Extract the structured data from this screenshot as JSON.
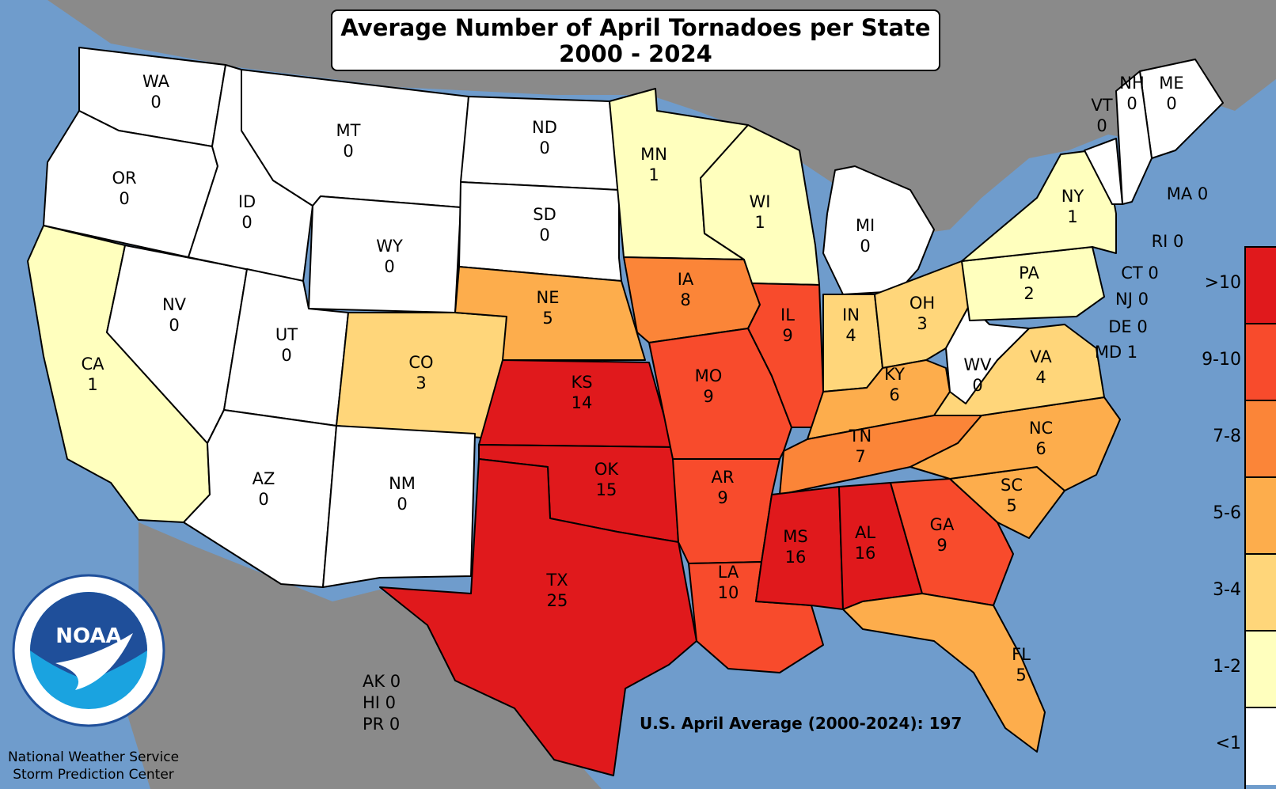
{
  "title": {
    "line1": "Average Number of April Tornadoes per State",
    "line2": "2000 - 2024"
  },
  "colors": {
    "water": "#6f9ccc",
    "land_outside": "#8a8a8a",
    "lt1": "#ffffff",
    "r1_2": "#ffffbe",
    "r3_4": "#ffd67a",
    "r5_6": "#fdad4c",
    "r7_8": "#fb8538",
    "r9_10": "#f84b2c",
    "gt10": "#e0191c"
  },
  "legend": [
    {
      "label": ">10",
      "color": "#e0191c"
    },
    {
      "label": "9-10",
      "color": "#f84b2c"
    },
    {
      "label": "7-8",
      "color": "#fb8538"
    },
    {
      "label": "5-6",
      "color": "#fdad4c"
    },
    {
      "label": "3-4",
      "color": "#ffd67a"
    },
    {
      "label": "1-2",
      "color": "#ffffbe"
    },
    {
      "label": "<1",
      "color": "#ffffff"
    }
  ],
  "states": [
    {
      "abbr": "WA",
      "value": "0"
    },
    {
      "abbr": "OR",
      "value": "0"
    },
    {
      "abbr": "CA",
      "value": "1"
    },
    {
      "abbr": "NV",
      "value": "0"
    },
    {
      "abbr": "ID",
      "value": "0"
    },
    {
      "abbr": "MT",
      "value": "0"
    },
    {
      "abbr": "WY",
      "value": "0"
    },
    {
      "abbr": "UT",
      "value": "0"
    },
    {
      "abbr": "AZ",
      "value": "0"
    },
    {
      "abbr": "CO",
      "value": "3"
    },
    {
      "abbr": "NM",
      "value": "0"
    },
    {
      "abbr": "ND",
      "value": "0"
    },
    {
      "abbr": "SD",
      "value": "0"
    },
    {
      "abbr": "NE",
      "value": "5"
    },
    {
      "abbr": "KS",
      "value": "14"
    },
    {
      "abbr": "OK",
      "value": "15"
    },
    {
      "abbr": "TX",
      "value": "25"
    },
    {
      "abbr": "MN",
      "value": "1"
    },
    {
      "abbr": "IA",
      "value": "8"
    },
    {
      "abbr": "MO",
      "value": "9"
    },
    {
      "abbr": "AR",
      "value": "9"
    },
    {
      "abbr": "LA",
      "value": "10"
    },
    {
      "abbr": "WI",
      "value": "1"
    },
    {
      "abbr": "IL",
      "value": "9"
    },
    {
      "abbr": "MI",
      "value": "0"
    },
    {
      "abbr": "IN",
      "value": "4"
    },
    {
      "abbr": "OH",
      "value": "3"
    },
    {
      "abbr": "KY",
      "value": "6"
    },
    {
      "abbr": "TN",
      "value": "7"
    },
    {
      "abbr": "MS",
      "value": "16"
    },
    {
      "abbr": "AL",
      "value": "16"
    },
    {
      "abbr": "GA",
      "value": "9"
    },
    {
      "abbr": "FL",
      "value": "5"
    },
    {
      "abbr": "SC",
      "value": "5"
    },
    {
      "abbr": "NC",
      "value": "6"
    },
    {
      "abbr": "VA",
      "value": "4"
    },
    {
      "abbr": "WV",
      "value": "0"
    },
    {
      "abbr": "PA",
      "value": "2"
    },
    {
      "abbr": "NY",
      "value": "1"
    },
    {
      "abbr": "ME",
      "value": "0"
    },
    {
      "abbr": "NH",
      "value": "0"
    },
    {
      "abbr": "VT",
      "value": "0"
    }
  ],
  "small_states": [
    {
      "abbr": "MA",
      "value": "0",
      "text": "MA 0"
    },
    {
      "abbr": "RI",
      "value": "0",
      "text": "RI 0"
    },
    {
      "abbr": "CT",
      "value": "0",
      "text": "CT 0"
    },
    {
      "abbr": "NJ",
      "value": "0",
      "text": "NJ 0"
    },
    {
      "abbr": "DE",
      "value": "0",
      "text": "DE 0"
    },
    {
      "abbr": "MD",
      "value": "1",
      "text": "MD 1"
    }
  ],
  "other": {
    "ak": "AK 0",
    "hi": "HI 0",
    "pr": "PR 0"
  },
  "us_average": "U.S. April Average (2000-2024): 197",
  "logo": {
    "text": "NOAA"
  },
  "agency": {
    "line1": "National Weather Service",
    "line2": "Storm Prediction Center"
  }
}
